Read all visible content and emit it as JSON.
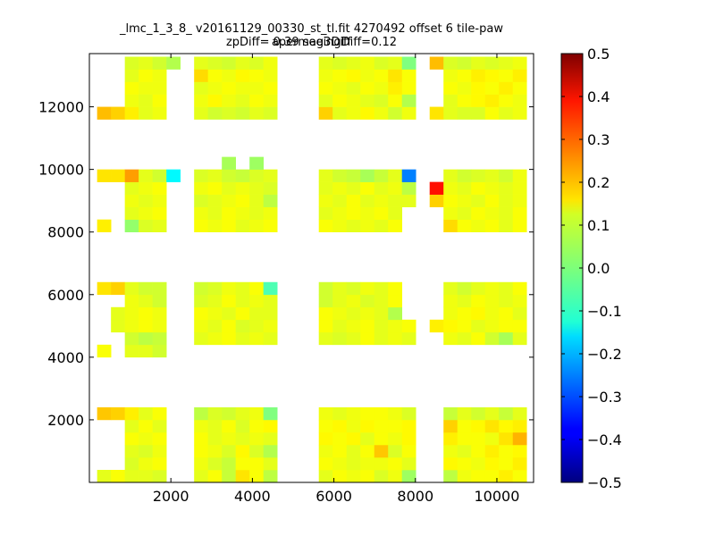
{
  "chart_data": {
    "type": "heatmap",
    "title": "_lmc_1_3_8_ v20161129_00330_st_tl.fit 4270492 offset 6 tile-paw apermag3Diff",
    "subtitle": "zpDiff= 0.39 seeingDiff=0.12",
    "xlim": [
      0,
      10900
    ],
    "ylim": [
      0,
      13700
    ],
    "xticks": [
      2000,
      4000,
      6000,
      8000,
      10000
    ],
    "yticks": [
      2000,
      4000,
      6000,
      8000,
      10000,
      12000
    ],
    "colorbar": {
      "colormap": "jet",
      "range": [
        -0.5,
        0.5
      ],
      "ticks": [
        "0.5",
        "0.4",
        "0.3",
        "0.2",
        "0.1",
        "0.0",
        "−0.1",
        "−0.2",
        "−0.3",
        "−0.4",
        "−0.5"
      ]
    },
    "cell_width": 340,
    "cell_height": 400,
    "column_x": [
      360,
      700,
      1040,
      1380,
      1720,
      2060,
      2740,
      3080,
      3420,
      3760,
      4100,
      4440,
      4780,
      5800,
      6140,
      6480,
      6820,
      7160,
      7500,
      7840,
      8520,
      8860,
      9200,
      9540,
      9880,
      10220,
      10560
    ],
    "row_y": [
      200,
      600,
      1000,
      1400,
      1800,
      2200,
      4200,
      4600,
      5000,
      5400,
      5800,
      6200,
      8200,
      8600,
      9000,
      9400,
      9800,
      10200,
      11800,
      12200,
      12600,
      13000,
      13400
    ],
    "values": [
      [
        0.1,
        0.12,
        0.1,
        0.1,
        0.09,
        null,
        0.1,
        0.12,
        0.07,
        0.15,
        0.12,
        0.06,
        null,
        0.1,
        0.12,
        0.11,
        0.12,
        0.09,
        0.11,
        0.03,
        null,
        0.06,
        0.11,
        0.12,
        0.12,
        0.14,
        0.12
      ],
      [
        null,
        null,
        0.09,
        0.11,
        0.12,
        null,
        0.11,
        0.09,
        0.07,
        0.12,
        0.12,
        0.1,
        null,
        0.12,
        0.11,
        0.1,
        0.11,
        0.11,
        0.12,
        0.1,
        null,
        0.13,
        0.12,
        0.11,
        0.13,
        0.12,
        0.14
      ],
      [
        null,
        null,
        0.1,
        0.09,
        0.11,
        null,
        0.12,
        0.11,
        0.09,
        0.13,
        0.09,
        0.05,
        null,
        0.11,
        0.12,
        0.1,
        0.12,
        0.18,
        0.09,
        0.12,
        null,
        0.11,
        0.1,
        0.12,
        0.14,
        0.12,
        0.13
      ],
      [
        null,
        null,
        0.12,
        0.11,
        0.12,
        null,
        0.12,
        0.1,
        0.11,
        0.1,
        0.11,
        0.1,
        null,
        0.13,
        0.12,
        0.13,
        0.1,
        0.12,
        0.11,
        0.13,
        null,
        0.14,
        0.12,
        0.12,
        0.11,
        0.15,
        0.2
      ],
      [
        null,
        null,
        0.1,
        0.12,
        0.1,
        null,
        0.11,
        0.1,
        0.12,
        0.09,
        0.12,
        0.13,
        null,
        0.12,
        0.13,
        0.11,
        0.13,
        0.12,
        0.12,
        0.13,
        null,
        0.17,
        0.12,
        0.13,
        0.15,
        0.13,
        0.14
      ],
      [
        0.18,
        0.17,
        0.14,
        0.1,
        0.12,
        null,
        0.06,
        0.09,
        0.08,
        0.1,
        0.11,
        0.0,
        null,
        0.11,
        0.1,
        0.11,
        0.12,
        0.12,
        0.11,
        0.09,
        null,
        0.07,
        0.1,
        0.08,
        0.1,
        0.07,
        0.1
      ],
      [
        0.12,
        null,
        0.1,
        0.1,
        0.08,
        null,
        null,
        null,
        null,
        null,
        null,
        null,
        null,
        null,
        null,
        null,
        null,
        null,
        null,
        null,
        null,
        null,
        null,
        null,
        null,
        null,
        null
      ],
      [
        null,
        null,
        0.08,
        0.06,
        0.07,
        null,
        0.1,
        0.11,
        0.12,
        0.1,
        0.11,
        0.1,
        null,
        0.1,
        0.09,
        0.1,
        0.12,
        0.1,
        0.11,
        0.1,
        null,
        0.11,
        0.1,
        0.12,
        0.08,
        0.04,
        0.1
      ],
      [
        null,
        0.1,
        0.11,
        0.12,
        0.11,
        null,
        0.11,
        0.1,
        0.12,
        0.09,
        0.1,
        0.11,
        null,
        0.12,
        0.1,
        0.11,
        0.12,
        0.1,
        0.11,
        0.12,
        0.14,
        0.13,
        0.12,
        0.1,
        0.11,
        0.12,
        0.12
      ],
      [
        null,
        0.1,
        0.11,
        0.12,
        0.11,
        null,
        0.12,
        0.11,
        0.1,
        0.12,
        0.1,
        0.1,
        null,
        0.12,
        0.11,
        0.1,
        0.11,
        0.1,
        0.05,
        null,
        null,
        0.11,
        0.12,
        0.13,
        0.11,
        0.12,
        0.1
      ],
      [
        null,
        null,
        0.11,
        0.1,
        0.08,
        null,
        0.09,
        0.1,
        0.12,
        0.1,
        0.11,
        0.1,
        null,
        0.08,
        0.1,
        0.11,
        0.09,
        0.1,
        0.12,
        null,
        null,
        0.11,
        0.1,
        0.12,
        0.11,
        0.1,
        0.11
      ],
      [
        0.15,
        0.17,
        0.1,
        0.08,
        0.08,
        null,
        0.08,
        0.09,
        0.11,
        0.1,
        0.12,
        -0.05,
        null,
        0.08,
        0.1,
        0.09,
        0.11,
        0.1,
        0.12,
        null,
        null,
        0.1,
        0.08,
        0.1,
        0.11,
        0.1,
        0.12
      ],
      [
        0.14,
        null,
        0.02,
        0.09,
        0.1,
        null,
        0.12,
        0.11,
        0.12,
        0.1,
        0.11,
        0.12,
        null,
        0.12,
        0.11,
        0.1,
        0.11,
        0.1,
        0.12,
        null,
        null,
        0.16,
        0.12,
        0.11,
        0.12,
        0.1,
        0.12
      ],
      [
        null,
        null,
        0.1,
        0.11,
        0.12,
        null,
        0.11,
        0.1,
        0.12,
        0.11,
        0.1,
        0.11,
        null,
        0.1,
        0.11,
        0.12,
        0.11,
        0.12,
        0.1,
        null,
        null,
        0.11,
        0.1,
        0.12,
        0.11,
        0.1,
        0.12
      ],
      [
        null,
        null,
        0.11,
        0.1,
        0.11,
        null,
        0.09,
        0.1,
        0.11,
        0.12,
        0.1,
        0.06,
        null,
        0.11,
        0.1,
        0.12,
        0.1,
        0.11,
        0.1,
        0.1,
        0.17,
        0.12,
        0.11,
        0.1,
        0.12,
        0.1,
        0.11
      ],
      [
        null,
        null,
        0.1,
        0.11,
        0.12,
        null,
        0.11,
        0.12,
        0.1,
        0.11,
        0.1,
        0.09,
        null,
        0.1,
        0.11,
        0.1,
        0.12,
        0.1,
        0.11,
        0.06,
        0.36,
        0.11,
        0.1,
        0.12,
        0.11,
        0.1,
        0.11
      ],
      [
        0.15,
        0.15,
        0.22,
        0.1,
        0.08,
        -0.13,
        0.09,
        0.1,
        0.08,
        0.07,
        0.09,
        0.1,
        null,
        0.1,
        0.08,
        0.07,
        0.04,
        0.07,
        0.1,
        -0.25,
        null,
        0.1,
        0.08,
        0.09,
        0.1,
        0.08,
        0.11
      ],
      [
        null,
        null,
        null,
        null,
        null,
        null,
        null,
        null,
        0.04,
        null,
        0.03,
        null,
        null,
        null,
        null,
        null,
        null,
        null,
        null,
        null,
        null,
        null,
        null,
        null,
        null,
        null,
        null
      ],
      [
        0.19,
        0.17,
        0.14,
        0.1,
        0.11,
        null,
        0.1,
        0.08,
        0.09,
        0.08,
        0.1,
        0.09,
        null,
        0.17,
        0.1,
        0.11,
        0.13,
        0.11,
        0.08,
        0.11,
        0.15,
        0.1,
        0.09,
        0.09,
        0.12,
        0.1,
        0.11
      ],
      [
        null,
        null,
        0.11,
        0.1,
        0.12,
        null,
        0.11,
        0.13,
        0.11,
        0.1,
        0.12,
        0.11,
        null,
        0.1,
        0.12,
        0.11,
        0.1,
        0.09,
        0.12,
        0.05,
        null,
        0.1,
        0.12,
        0.13,
        0.14,
        0.12,
        0.11
      ],
      [
        null,
        null,
        0.12,
        0.11,
        0.11,
        null,
        0.1,
        0.11,
        0.12,
        0.11,
        0.11,
        0.12,
        null,
        0.12,
        0.11,
        0.1,
        0.12,
        0.11,
        0.14,
        0.12,
        null,
        0.12,
        0.11,
        0.13,
        0.12,
        0.14,
        0.12
      ],
      [
        null,
        null,
        0.1,
        0.12,
        0.11,
        null,
        0.16,
        0.12,
        0.11,
        0.13,
        0.12,
        0.11,
        null,
        0.11,
        0.12,
        0.13,
        0.11,
        0.12,
        0.15,
        0.12,
        null,
        0.11,
        0.12,
        0.14,
        0.13,
        0.12,
        0.14
      ],
      [
        null,
        null,
        0.09,
        0.1,
        0.08,
        0.05,
        0.1,
        0.09,
        0.08,
        0.1,
        0.09,
        0.11,
        null,
        0.1,
        0.09,
        0.1,
        0.11,
        0.09,
        0.1,
        0.0,
        0.19,
        0.09,
        0.08,
        0.1,
        0.09,
        0.1,
        0.11
      ]
    ]
  }
}
